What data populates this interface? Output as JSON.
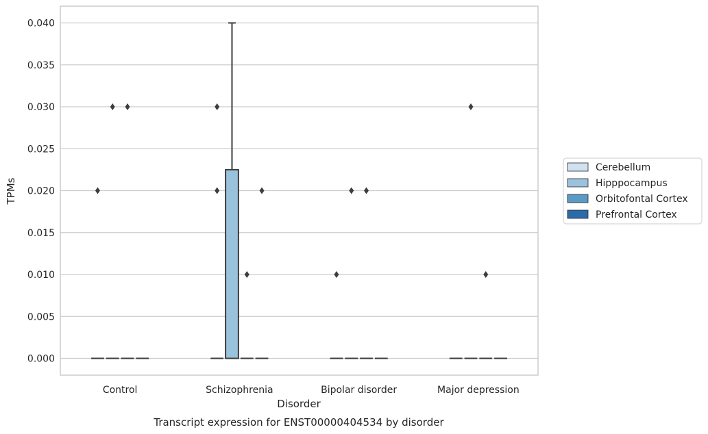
{
  "chart_data": {
    "type": "box",
    "title": "",
    "caption": "Transcript expression for ENST00000404534 by disorder",
    "xlabel": "Disorder",
    "ylabel": "TPMs",
    "ylim": [
      -0.002,
      0.042
    ],
    "yticks": [
      0.0,
      0.005,
      0.01,
      0.015,
      0.02,
      0.025,
      0.03,
      0.035,
      0.04
    ],
    "ytick_labels": [
      "0.000",
      "0.005",
      "0.010",
      "0.015",
      "0.020",
      "0.025",
      "0.030",
      "0.035",
      "0.040"
    ],
    "grid": "horizontal",
    "legend_position": "right",
    "categories": [
      "Control",
      "Schizophrenia",
      "Bipolar disorder",
      "Major depression"
    ],
    "series": [
      {
        "name": "Cerebellum",
        "color": "#d0e1f2",
        "boxes": [
          {
            "q1": 0,
            "median": 0,
            "q3": 0,
            "whisker_low": 0,
            "whisker_high": 0,
            "outliers": [
              0.02
            ]
          },
          {
            "q1": 0,
            "median": 0,
            "q3": 0,
            "whisker_low": 0,
            "whisker_high": 0,
            "outliers": [
              0.03,
              0.02
            ]
          },
          {
            "q1": 0,
            "median": 0,
            "q3": 0,
            "whisker_low": 0,
            "whisker_high": 0,
            "outliers": [
              0.01
            ]
          },
          {
            "q1": 0,
            "median": 0,
            "q3": 0,
            "whisker_low": 0,
            "whisker_high": 0,
            "outliers": []
          }
        ]
      },
      {
        "name": "Hipppocampus",
        "color": "#9ac2dd",
        "boxes": [
          {
            "q1": 0,
            "median": 0,
            "q3": 0,
            "whisker_low": 0,
            "whisker_high": 0,
            "outliers": [
              0.03
            ]
          },
          {
            "q1": 0,
            "median": 0,
            "q3": 0.0225,
            "whisker_low": 0,
            "whisker_high": 0.04,
            "outliers": []
          },
          {
            "q1": 0,
            "median": 0,
            "q3": 0,
            "whisker_low": 0,
            "whisker_high": 0,
            "outliers": [
              0.02
            ]
          },
          {
            "q1": 0,
            "median": 0,
            "q3": 0,
            "whisker_low": 0,
            "whisker_high": 0,
            "outliers": [
              0.03
            ]
          }
        ]
      },
      {
        "name": "Orbitofontal Cortex",
        "color": "#5a9bc6",
        "boxes": [
          {
            "q1": 0,
            "median": 0,
            "q3": 0,
            "whisker_low": 0,
            "whisker_high": 0,
            "outliers": [
              0.03
            ]
          },
          {
            "q1": 0,
            "median": 0,
            "q3": 0,
            "whisker_low": 0,
            "whisker_high": 0,
            "outliers": [
              0.01
            ]
          },
          {
            "q1": 0,
            "median": 0,
            "q3": 0,
            "whisker_low": 0,
            "whisker_high": 0,
            "outliers": [
              0.02
            ]
          },
          {
            "q1": 0,
            "median": 0,
            "q3": 0,
            "whisker_low": 0,
            "whisker_high": 0,
            "outliers": [
              0.01
            ]
          }
        ]
      },
      {
        "name": "Prefrontal Cortex",
        "color": "#2b6ba9",
        "boxes": [
          {
            "q1": 0,
            "median": 0,
            "q3": 0,
            "whisker_low": 0,
            "whisker_high": 0,
            "outliers": []
          },
          {
            "q1": 0,
            "median": 0,
            "q3": 0,
            "whisker_low": 0,
            "whisker_high": 0,
            "outliers": [
              0.02
            ]
          },
          {
            "q1": 0,
            "median": 0,
            "q3": 0,
            "whisker_low": 0,
            "whisker_high": 0,
            "outliers": []
          },
          {
            "q1": 0,
            "median": 0,
            "q3": 0,
            "whisker_low": 0,
            "whisker_high": 0,
            "outliers": []
          }
        ]
      }
    ]
  }
}
